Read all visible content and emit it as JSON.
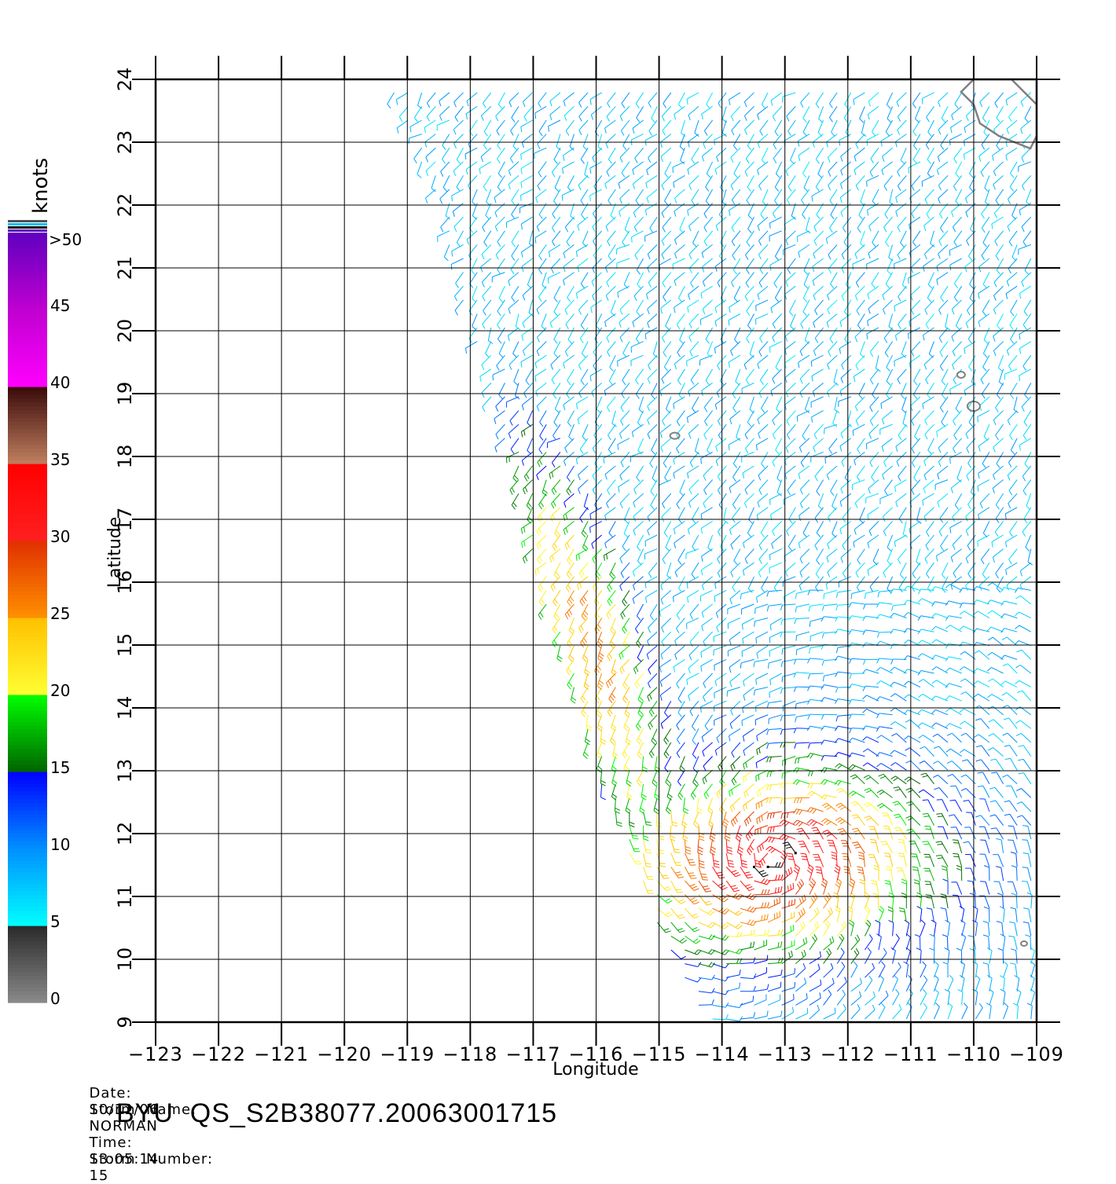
{
  "colorbar": {
    "unit": "knots",
    "top_label": ">50",
    "tick_labels": [
      "45",
      "40",
      "35",
      "30",
      "25",
      "20",
      "15",
      "10",
      "5",
      "0"
    ],
    "stops": [
      {
        "value": 0,
        "color": "#8a8a8a"
      },
      {
        "value": 5,
        "color": "#2a2a2a"
      },
      {
        "value": 5.01,
        "color": "#00ffff"
      },
      {
        "value": 10,
        "color": "#0090ff"
      },
      {
        "value": 15,
        "color": "#0000ff"
      },
      {
        "value": 15.01,
        "color": "#006400"
      },
      {
        "value": 20,
        "color": "#00ff00"
      },
      {
        "value": 20.01,
        "color": "#ffff33"
      },
      {
        "value": 25,
        "color": "#ffc000"
      },
      {
        "value": 25.01,
        "color": "#ff9000"
      },
      {
        "value": 30,
        "color": "#e03000"
      },
      {
        "value": 30.01,
        "color": "#ff2020"
      },
      {
        "value": 35,
        "color": "#ff0000"
      },
      {
        "value": 35.01,
        "color": "#c08060"
      },
      {
        "value": 40,
        "color": "#3a0a0a"
      },
      {
        "value": 40.01,
        "color": "#ff00ff"
      },
      {
        "value": 45,
        "color": "#c000d0"
      },
      {
        "value": 50,
        "color": "#6000c0"
      }
    ],
    "top_swatches": [
      "#505050",
      "#00c0ff",
      "#000000",
      "#6000c0"
    ]
  },
  "map": {
    "xlabel": "Longitude",
    "ylabel": "Latitude",
    "lon_ticks": [
      "−123",
      "−122",
      "−121",
      "−120",
      "−119",
      "−118",
      "−117",
      "−116",
      "−115",
      "−114",
      "−113",
      "−112",
      "−111",
      "−110",
      "−109"
    ],
    "lat_ticks": [
      "9",
      "10",
      "11",
      "12",
      "13",
      "14",
      "15",
      "16",
      "17",
      "18",
      "19",
      "20",
      "21",
      "22",
      "23",
      "24"
    ],
    "lon_range": [
      -123,
      -109
    ],
    "lat_range": [
      9,
      24
    ],
    "swath_polygon": [
      [
        -119.3,
        24
      ],
      [
        -114.9,
        24
      ],
      [
        -109,
        24
      ],
      [
        -109,
        9
      ],
      [
        -114.3,
        9
      ],
      [
        -115.0,
        10.5
      ],
      [
        -116.0,
        13.0
      ],
      [
        -116.9,
        16.0
      ],
      [
        -117.4,
        18.0
      ],
      [
        -118.0,
        20.0
      ],
      [
        -118.5,
        22.0
      ],
      [
        -119.3,
        24.0
      ]
    ],
    "storm_core": {
      "lon": -113.2,
      "lat": 11.6
    },
    "coastline_color": "#808080",
    "grid": true
  },
  "footer": {
    "date_label": "Date:",
    "date": "10/11/06",
    "time_label": "Time:",
    "time": "13:05:14",
    "storm_name_label": "Storm  Name:",
    "storm_name": "NORMAN",
    "storm_number_label": "Storm  Number:",
    "storm_number": "15",
    "product_id": "BYU  QS_S2B38077.20063001715"
  }
}
